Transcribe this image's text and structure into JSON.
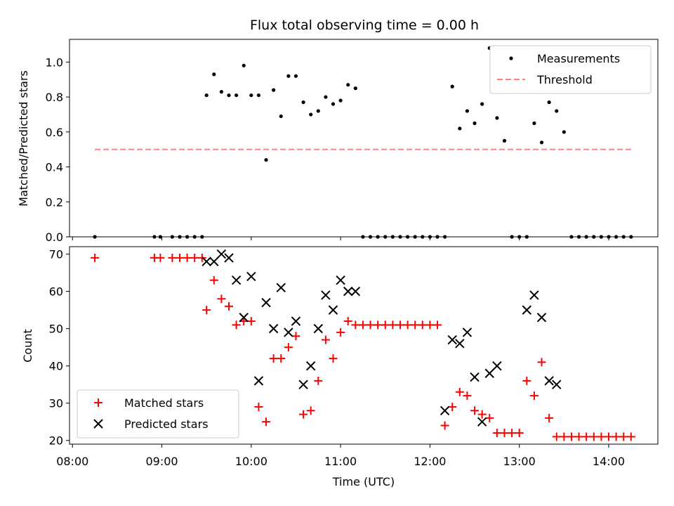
{
  "chart_data": [
    {
      "type": "scatter",
      "title": "Flux total observing time = 0.00 h",
      "xlabel": "",
      "ylabel": "Matched/Predicted stars",
      "xlim": [
        "07:58",
        "14:33"
      ],
      "ylim": [
        0,
        1.13
      ],
      "yticks": [
        "0.0",
        "0.2",
        "0.4",
        "0.6",
        "0.8",
        "1.0"
      ],
      "legend_position": "top-right",
      "legend": [
        "Measurements",
        "Threshold"
      ],
      "series": [
        {
          "name": "Measurements",
          "color": "#000000",
          "marker": "dot",
          "x": [
            "08:15",
            "08:55",
            "08:59",
            "09:07",
            "09:12",
            "09:17",
            "09:22",
            "09:27",
            "09:30",
            "09:35",
            "09:40",
            "09:45",
            "09:50",
            "09:55",
            "10:00",
            "10:05",
            "10:10",
            "10:15",
            "10:20",
            "10:25",
            "10:30",
            "10:35",
            "10:40",
            "10:45",
            "10:50",
            "10:55",
            "11:00",
            "11:05",
            "11:10",
            "11:15",
            "11:20",
            "11:25",
            "11:30",
            "11:35",
            "11:40",
            "11:45",
            "11:50",
            "11:55",
            "12:00",
            "12:05",
            "12:10",
            "12:15",
            "12:20",
            "12:25",
            "12:30",
            "12:35",
            "12:40",
            "12:45",
            "12:50",
            "12:55",
            "13:00",
            "13:05",
            "13:10",
            "13:15",
            "13:20",
            "13:25",
            "13:30",
            "13:35",
            "13:40",
            "13:45",
            "13:50",
            "13:55",
            "14:00",
            "14:05",
            "14:10",
            "14:15"
          ],
          "y": [
            0,
            0,
            0,
            0,
            0,
            0,
            0,
            0,
            0.81,
            0.93,
            0.83,
            0.81,
            0.81,
            0.98,
            0.81,
            0.81,
            0.44,
            0.84,
            0.69,
            0.92,
            0.92,
            0.77,
            0.7,
            0.72,
            0.8,
            0.76,
            0.78,
            0.87,
            0.85,
            0,
            0,
            0,
            0,
            0,
            0,
            0,
            0,
            0,
            0,
            0,
            0,
            0.86,
            0.62,
            0.72,
            0.65,
            0.76,
            1.08,
            0.68,
            0.55,
            0,
            0,
            0,
            0.65,
            0.54,
            0.77,
            0.72,
            0.6,
            0,
            0,
            0,
            0,
            0,
            0,
            0,
            0,
            0
          ]
        },
        {
          "name": "Threshold",
          "color": "#ff7f7f",
          "style": "dashed",
          "x": [
            "08:15",
            "14:15"
          ],
          "y": [
            0.5,
            0.5
          ]
        }
      ]
    },
    {
      "type": "scatter",
      "title": "",
      "xlabel": "Time (UTC)",
      "ylabel": "Count",
      "xlim": [
        "07:58",
        "14:33"
      ],
      "ylim": [
        19,
        72
      ],
      "xticks": [
        "08:00",
        "09:00",
        "10:00",
        "11:00",
        "12:00",
        "13:00",
        "14:00"
      ],
      "yticks": [
        "20",
        "30",
        "40",
        "50",
        "60",
        "70"
      ],
      "legend_position": "bottom-left",
      "legend": [
        "Matched stars",
        "Predicted stars"
      ],
      "series": [
        {
          "name": "Matched stars",
          "color": "#ff0000",
          "marker": "plus",
          "x": [
            "08:15",
            "08:55",
            "08:59",
            "09:07",
            "09:12",
            "09:17",
            "09:22",
            "09:27",
            "09:30",
            "09:35",
            "09:40",
            "09:45",
            "09:50",
            "09:55",
            "10:00",
            "10:05",
            "10:10",
            "10:15",
            "10:20",
            "10:25",
            "10:30",
            "10:35",
            "10:40",
            "10:45",
            "10:50",
            "10:55",
            "11:00",
            "11:05",
            "11:10",
            "11:15",
            "11:20",
            "11:25",
            "11:30",
            "11:35",
            "11:40",
            "11:45",
            "11:50",
            "11:55",
            "12:00",
            "12:05",
            "12:10",
            "12:15",
            "12:20",
            "12:25",
            "12:30",
            "12:35",
            "12:40",
            "12:45",
            "12:50",
            "12:55",
            "13:00",
            "13:05",
            "13:10",
            "13:15",
            "13:20",
            "13:25",
            "13:30",
            "13:35",
            "13:40",
            "13:45",
            "13:50",
            "13:55",
            "14:00",
            "14:05",
            "14:10",
            "14:15"
          ],
          "y": [
            69,
            69,
            69,
            69,
            69,
            69,
            69,
            69,
            55,
            63,
            58,
            56,
            51,
            52,
            52,
            29,
            25,
            42,
            42,
            45,
            48,
            27,
            28,
            36,
            47,
            42,
            49,
            52,
            51,
            51,
            51,
            51,
            51,
            51,
            51,
            51,
            51,
            51,
            51,
            51,
            24,
            29,
            33,
            32,
            28,
            27,
            26,
            22,
            22,
            22,
            22,
            36,
            32,
            41,
            26,
            21,
            21,
            21,
            21,
            21,
            21,
            21,
            21,
            21,
            21,
            21
          ]
        },
        {
          "name": "Predicted stars",
          "color": "#000000",
          "marker": "x",
          "x": [
            "09:30",
            "09:35",
            "09:40",
            "09:45",
            "09:50",
            "09:55",
            "10:00",
            "10:05",
            "10:10",
            "10:15",
            "10:20",
            "10:25",
            "10:30",
            "10:35",
            "10:40",
            "10:45",
            "10:50",
            "10:55",
            "11:00",
            "11:05",
            "11:10",
            "12:10",
            "12:15",
            "12:20",
            "12:25",
            "12:30",
            "12:35",
            "12:40",
            "12:45",
            "13:05",
            "13:10",
            "13:15",
            "13:20",
            "13:25"
          ],
          "y": [
            68,
            68,
            70,
            69,
            63,
            53,
            64,
            36,
            57,
            50,
            61,
            49,
            52,
            35,
            40,
            50,
            59,
            55,
            63,
            60,
            60,
            28,
            47,
            46,
            49,
            37,
            25,
            38,
            40,
            55,
            59,
            53,
            36,
            35
          ]
        }
      ]
    }
  ]
}
